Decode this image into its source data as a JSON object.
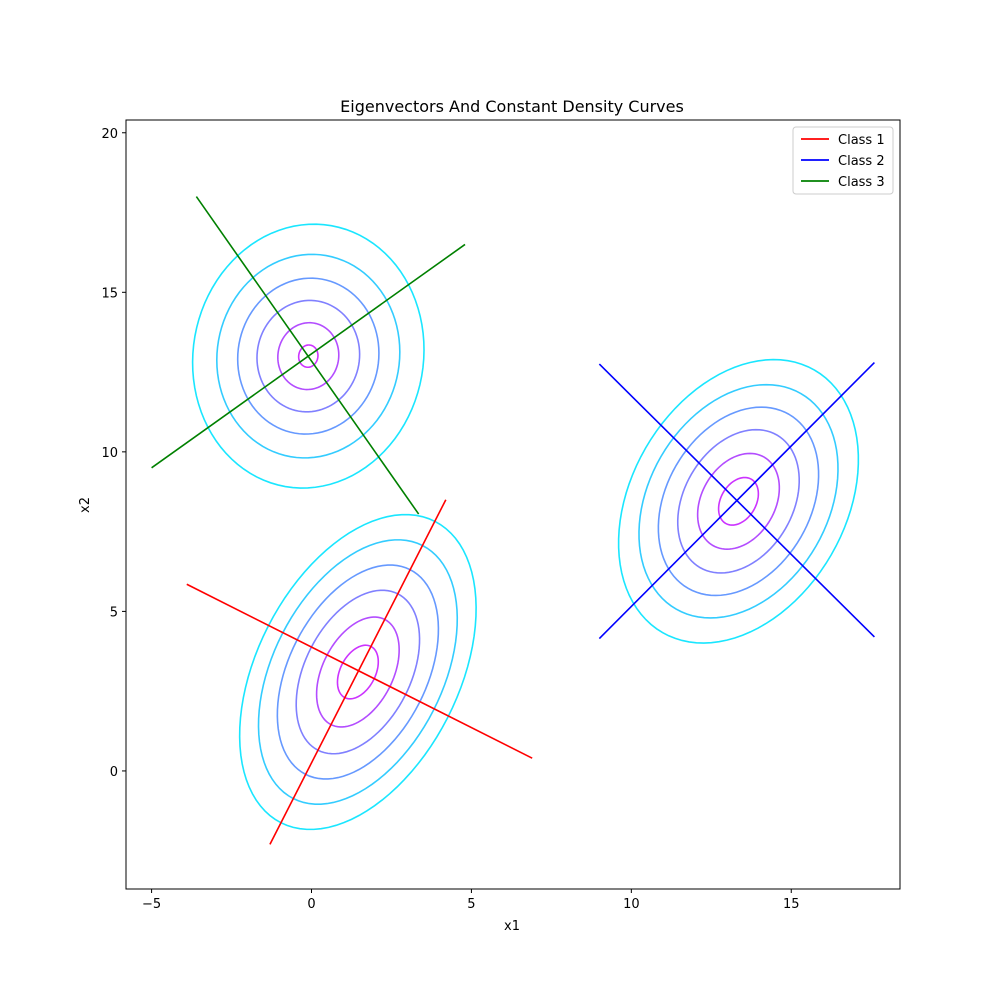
{
  "chart_data": {
    "type": "line",
    "title": "Eigenvectors And Constant Density Curves",
    "xlabel": "x1",
    "ylabel": "x2",
    "xlim": [
      -5.8,
      18.4
    ],
    "ylim": [
      -3.7,
      20.4
    ],
    "xticks": [
      -5,
      0,
      5,
      10,
      15
    ],
    "yticks": [
      0,
      5,
      10,
      15,
      20
    ],
    "grid": false,
    "legend_position": "upper right",
    "contour_colors": [
      "#cc33ff",
      "#b34dff",
      "#9966ff",
      "#8080ff",
      "#6699ff",
      "#4db3ff",
      "#33ccff",
      "#1ae6ff"
    ],
    "series": [
      {
        "name": "Class 1",
        "color": "#ff0000",
        "eigenvector_lines": [
          {
            "x": [
              -1.3,
              4.2
            ],
            "y": [
              -2.3,
              8.5
            ]
          },
          {
            "x": [
              -3.9,
              6.9
            ],
            "y": [
              5.85,
              0.4
            ]
          }
        ],
        "contours": [
          {
            "mean": [
              1.45,
              3.1
            ],
            "angle_deg": 63,
            "semi_axes": [
              [
                0.9,
                0.55
              ],
              [
                1.85,
                1.1
              ],
              [
                2.75,
                1.65
              ],
              [
                3.6,
                2.15
              ],
              [
                4.45,
                2.65
              ],
              [
                5.3,
                3.15
              ]
            ]
          }
        ]
      },
      {
        "name": "Class 2",
        "color": "#0000ff",
        "eigenvector_lines": [
          {
            "x": [
              9.0,
              17.6
            ],
            "y": [
              4.15,
              12.8
            ]
          },
          {
            "x": [
              9.0,
              17.6
            ],
            "y": [
              12.75,
              4.2
            ]
          }
        ],
        "contours": [
          {
            "mean": [
              13.35,
              8.45
            ],
            "angle_deg": 60,
            "semi_axes": [
              [
                0.8,
                0.55
              ],
              [
                1.6,
                1.15
              ],
              [
                2.4,
                1.7
              ],
              [
                3.15,
                2.25
              ],
              [
                3.9,
                2.8
              ],
              [
                4.75,
                3.35
              ]
            ]
          }
        ]
      },
      {
        "name": "Class 3",
        "color": "#008000",
        "eigenvector_lines": [
          {
            "x": [
              -3.6,
              3.35
            ],
            "y": [
              18.0,
              8.05
            ]
          },
          {
            "x": [
              -5.0,
              4.8
            ],
            "y": [
              9.5,
              16.5
            ]
          }
        ],
        "contours": [
          {
            "mean": [
              -0.1,
              13.0
            ],
            "angle_deg": 80,
            "semi_axes": [
              [
                0.35,
                0.3
              ],
              [
                1.05,
                0.95
              ],
              [
                1.75,
                1.6
              ],
              [
                2.45,
                2.2
              ],
              [
                3.2,
                2.85
              ],
              [
                4.15,
                3.6
              ]
            ]
          }
        ]
      }
    ]
  }
}
